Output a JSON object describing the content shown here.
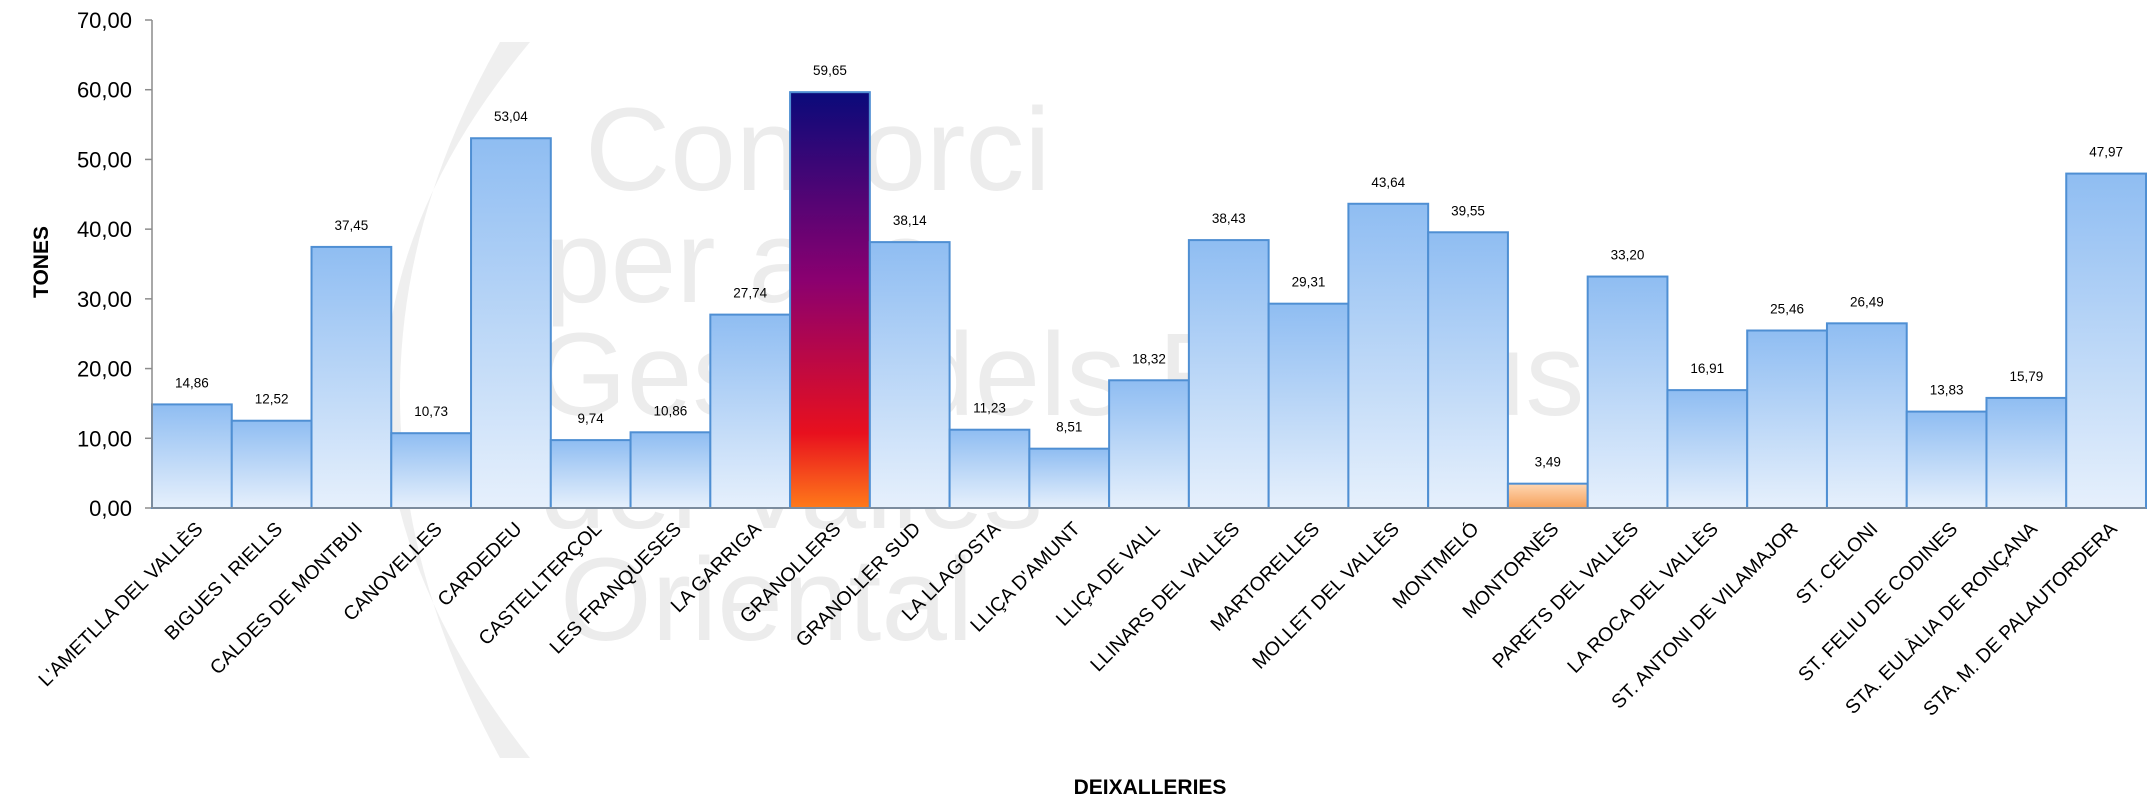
{
  "chart_data": {
    "type": "bar",
    "xlabel": "DEIXALLERIES",
    "ylabel": "TONES",
    "ylim": [
      0,
      70
    ],
    "yticks": [
      "0,00",
      "10,00",
      "20,00",
      "30,00",
      "40,00",
      "50,00",
      "60,00",
      "70,00"
    ],
    "grid": false,
    "legend": "none",
    "categories": [
      "L'AMETLLA DEL VALLÈS",
      "BIGUES I RIELLS",
      "CALDES DE MONTBUI",
      "CANOVELLES",
      "CARDEDEU",
      "CASTELLTERÇOL",
      "LES FRANQUESES",
      "LA GARRIGA",
      "GRANOLLERS",
      "GRANOLLER SUD",
      "LA LLAGOSTA",
      "LLIÇA D'AMUNT",
      "LLIÇA DE VALL",
      "LLINARS DEL VALLÈS",
      "MARTORELLES",
      "MOLLET DEL VALLÈS",
      "MONTMELÓ",
      "MONTORNÈS",
      "PARETS DEL VALLÈS",
      "LA ROCA DEL VALLÈS",
      "ST. ANTONI DE VILAMAJOR",
      "ST. CELONI",
      "ST. FELIU DE CODINES",
      "STA. EULÀLIA DE RONÇANA",
      "STA. M. DE PALAUTORDERA"
    ],
    "values": [
      14.86,
      12.52,
      37.45,
      10.73,
      53.04,
      9.74,
      10.86,
      27.74,
      59.65,
      38.14,
      11.23,
      8.51,
      18.32,
      38.43,
      29.31,
      43.64,
      39.55,
      3.49,
      33.2,
      16.91,
      25.46,
      26.49,
      13.83,
      15.79,
      47.97
    ],
    "value_labels": [
      "14,86",
      "12,52",
      "37,45",
      "10,73",
      "53,04",
      "9,74",
      "10,86",
      "27,74",
      "59,65",
      "38,14",
      "11,23",
      "8,51",
      "18,32",
      "38,43",
      "29,31",
      "43,64",
      "39,55",
      "3,49",
      "33,20",
      "16,91",
      "25,46",
      "26,49",
      "13,83",
      "15,79",
      "47,97"
    ],
    "highlight_max_index": 8,
    "highlight_min_index": 17,
    "colors": {
      "bar_top": "#8fbdf2",
      "bar_bottom": "#e6f0fc",
      "bar_border": "#4f8fd3",
      "max_bar_top": "#0a0a7a",
      "max_bar_mid": "#8a0070",
      "max_bar_low": "#e8101e",
      "max_bar_bottom": "#ff7a1a",
      "min_bar_top": "#ffd7b3",
      "min_bar_bottom": "#f5a05a",
      "axis": "#8c8c8c"
    }
  },
  "watermark": [
    "Consorci",
    "per a la",
    "Gestió dels Residus",
    "del Vallès",
    "Oriental"
  ]
}
